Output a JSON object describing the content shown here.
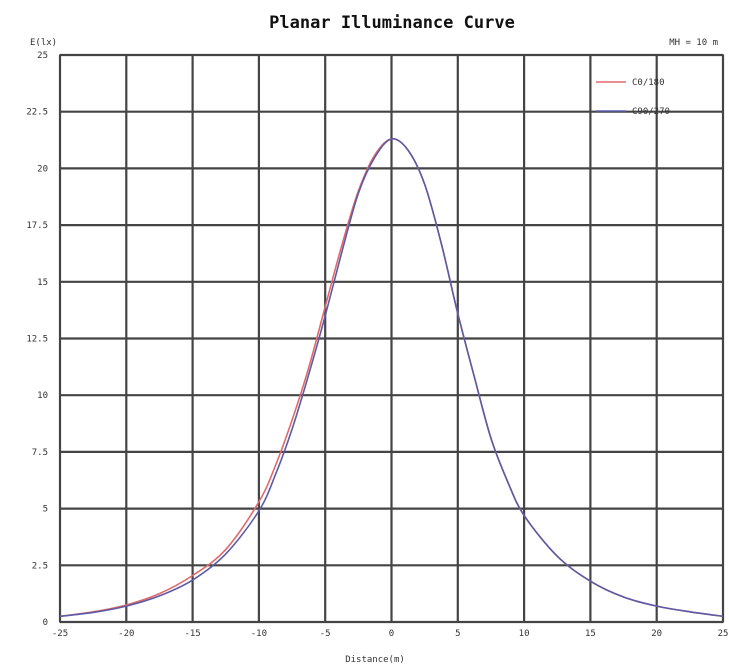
{
  "chart_data": {
    "type": "line",
    "title": "Planar Illuminance Curve",
    "ylabel": "E(lx)",
    "xlabel": "Distance(m)",
    "annotation": "MH = 10 m",
    "xlim": [
      -25,
      25
    ],
    "ylim": [
      0,
      25
    ],
    "x_ticks": [
      -25,
      -20,
      -15,
      -10,
      -5,
      0,
      5,
      10,
      15,
      20,
      25
    ],
    "y_ticks": [
      0,
      2.5,
      5,
      7.5,
      10,
      12.5,
      15,
      17.5,
      20,
      22.5,
      25
    ],
    "x_tick_labels": [
      "-25",
      "-20",
      "-15",
      "-10",
      "-5",
      "0",
      "5",
      "10",
      "15",
      "20",
      "25"
    ],
    "y_tick_labels": [
      "0",
      "2.5",
      "5",
      "7.5",
      "10",
      "12.5",
      "15",
      "17.5",
      "20",
      "22.5",
      "25"
    ],
    "grid": true,
    "legend_position": "top-right",
    "series": [
      {
        "name": "C0/180",
        "color": "#e06a6a",
        "x": [
          -25,
          -22.5,
          -20,
          -17.5,
          -15,
          -12.5,
          -10,
          -8.75,
          -7.5,
          -6.25,
          -5,
          -3.75,
          -2.5,
          -1.25,
          0,
          1.25,
          2.5,
          3.75,
          5,
          6.25,
          7.5,
          8.75,
          10,
          12.5,
          15,
          17.5,
          20,
          22.5,
          25
        ],
        "y": [
          0.25,
          0.45,
          0.75,
          1.25,
          2.05,
          3.2,
          5.3,
          6.9,
          8.9,
          11.2,
          13.9,
          16.6,
          19.0,
          20.6,
          21.3,
          20.8,
          19.3,
          16.7,
          13.6,
          10.8,
          8.1,
          6.2,
          4.7,
          2.9,
          1.8,
          1.1,
          0.7,
          0.45,
          0.25
        ]
      },
      {
        "name": "C90/270",
        "color": "#5b5ba8",
        "x": [
          -25,
          -22.5,
          -20,
          -17.5,
          -15,
          -12.5,
          -10,
          -8.75,
          -7.5,
          -6.25,
          -5,
          -3.75,
          -2.5,
          -1.25,
          0,
          1.25,
          2.5,
          3.75,
          5,
          6.25,
          7.5,
          8.75,
          10,
          12.5,
          15,
          17.5,
          20,
          22.5,
          25
        ],
        "y": [
          0.25,
          0.42,
          0.7,
          1.15,
          1.85,
          3.0,
          4.9,
          6.5,
          8.5,
          10.9,
          13.5,
          16.3,
          18.9,
          20.5,
          21.3,
          20.8,
          19.3,
          16.7,
          13.6,
          10.8,
          8.1,
          6.2,
          4.7,
          2.9,
          1.8,
          1.1,
          0.7,
          0.45,
          0.25
        ]
      }
    ]
  }
}
